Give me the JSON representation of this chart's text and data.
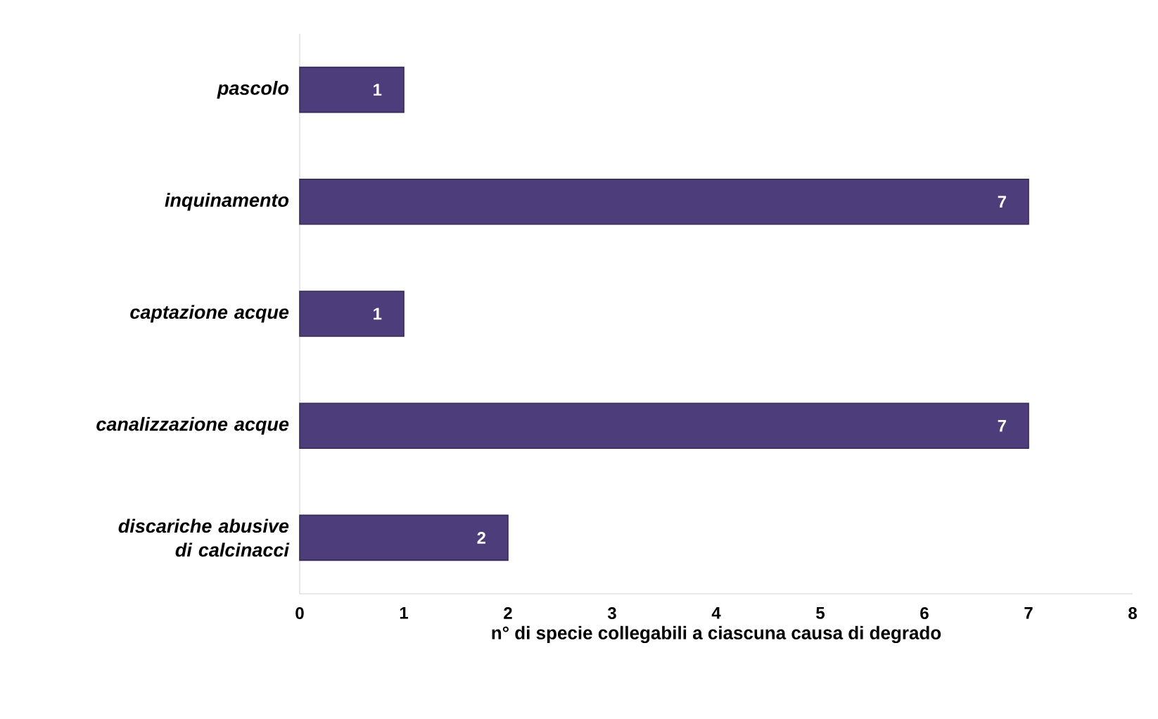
{
  "chart_data": {
    "type": "bar",
    "orientation": "horizontal",
    "categories": [
      "pascolo",
      "inquinamento",
      "captazione acque",
      "canalizzazione acque",
      "discariche abusive di calcinacci"
    ],
    "values": [
      1,
      7,
      1,
      7,
      2
    ],
    "color": "#4d3d7a",
    "data_labels": true,
    "xlabel": "n° di specie collegabili a ciascuna causa di degrado",
    "xlim": [
      0,
      8
    ],
    "xticks": [
      0,
      1,
      2,
      3,
      4,
      5,
      6,
      7,
      8
    ]
  }
}
